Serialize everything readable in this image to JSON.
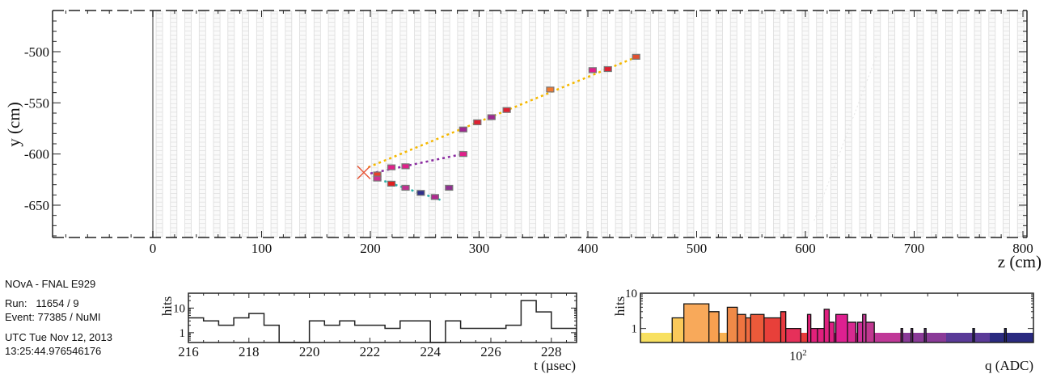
{
  "info": {
    "title": "NOvA - FNAL E929",
    "run_label": "Run:",
    "run_value": "11654 / 9",
    "event_label": "Event:",
    "event_value": "77385 / NuMI",
    "date": "UTC Tue Nov 12, 2013",
    "time": "13:25:44.976546176"
  },
  "chart_data": [
    {
      "name": "event-display-yz",
      "type": "scatter",
      "title": "",
      "xlabel": "z (cm)",
      "ylabel": "y (cm)",
      "xlim": [
        -90,
        805
      ],
      "ylim": [
        -683,
        -462
      ],
      "xticks": [
        0,
        100,
        200,
        300,
        400,
        500,
        600,
        700,
        800
      ],
      "yticks": [
        -500,
        -550,
        -600,
        -650
      ],
      "detector_edge_z": 0,
      "vertex": {
        "z": 194,
        "y": -618,
        "color": "#e8583a"
      },
      "tracks": [
        {
          "name": "track-1",
          "color": "#f5b800",
          "points": [
            [
              198,
              -613
            ],
            [
              445,
              -505
            ]
          ]
        },
        {
          "name": "track-2",
          "color": "#8a2aa0",
          "points": [
            [
              200,
              -619
            ],
            [
              285,
              -600
            ]
          ]
        },
        {
          "name": "track-3",
          "color": "#2ab0a8",
          "points": [
            [
              203,
              -623
            ],
            [
              265,
              -645
            ]
          ]
        }
      ],
      "hits": [
        {
          "z": 206,
          "y": -620,
          "color": "#e8402a"
        },
        {
          "z": 206,
          "y": -624,
          "color": "#d03090"
        },
        {
          "z": 219,
          "y": -613,
          "color": "#e0208a"
        },
        {
          "z": 219,
          "y": -629,
          "color": "#e02020"
        },
        {
          "z": 232,
          "y": -612,
          "color": "#e0208a"
        },
        {
          "z": 232,
          "y": -633,
          "color": "#c03090"
        },
        {
          "z": 246,
          "y": -638,
          "color": "#30308a"
        },
        {
          "z": 259,
          "y": -642,
          "color": "#b02890"
        },
        {
          "z": 272,
          "y": -633,
          "color": "#903090"
        },
        {
          "z": 285,
          "y": -600,
          "color": "#e0208a"
        },
        {
          "z": 285,
          "y": -576,
          "color": "#a02890"
        },
        {
          "z": 298,
          "y": -569,
          "color": "#e02030"
        },
        {
          "z": 311,
          "y": -564,
          "color": "#a02890"
        },
        {
          "z": 325,
          "y": -557,
          "color": "#e02030"
        },
        {
          "z": 365,
          "y": -537,
          "color": "#f07830"
        },
        {
          "z": 404,
          "y": -518,
          "color": "#e0208a"
        },
        {
          "z": 418,
          "y": -517,
          "color": "#e02030"
        },
        {
          "z": 444,
          "y": -505,
          "color": "#e05030"
        }
      ]
    },
    {
      "name": "time-histogram",
      "type": "bar",
      "xlabel": "t (µsec)",
      "ylabel": "hits",
      "xlim": [
        216,
        229
      ],
      "ylog": true,
      "ylim": [
        0.4,
        40
      ],
      "xticks": [
        216,
        218,
        220,
        222,
        224,
        226,
        228
      ],
      "ytick_labels": [
        "10",
        "1"
      ],
      "bin_width": 0.5,
      "bins": [
        [
          216.0,
          4
        ],
        [
          216.5,
          3
        ],
        [
          217.0,
          2
        ],
        [
          217.5,
          4
        ],
        [
          218.0,
          6
        ],
        [
          218.5,
          2
        ],
        [
          219.0,
          0
        ],
        [
          219.5,
          0
        ],
        [
          220.0,
          3
        ],
        [
          220.5,
          2
        ],
        [
          221.0,
          3
        ],
        [
          221.5,
          2
        ],
        [
          222.0,
          2
        ],
        [
          222.5,
          1.5
        ],
        [
          223.0,
          3
        ],
        [
          223.5,
          3
        ],
        [
          224.0,
          0
        ],
        [
          224.5,
          3
        ],
        [
          225.0,
          1.5
        ],
        [
          225.5,
          1.5
        ],
        [
          226.0,
          1.5
        ],
        [
          226.5,
          2
        ],
        [
          227.0,
          20
        ],
        [
          227.5,
          7
        ],
        [
          228.0,
          1.5
        ],
        [
          228.5,
          1.5
        ]
      ]
    },
    {
      "name": "charge-histogram",
      "type": "bar",
      "xlabel": "q (ADC)",
      "ylabel": "hits",
      "xlog": true,
      "xtick_labels": [
        "10²"
      ],
      "ylog": true,
      "ytick_labels": [
        "10",
        "1"
      ],
      "ylim": [
        0.4,
        10
      ],
      "bins_frac": [
        [
          0.095,
          0.13,
          2,
          "#fbc95a"
        ],
        [
          0.13,
          0.205,
          5,
          "#f8a95a"
        ],
        [
          0.205,
          0.235,
          3,
          "#f8a050"
        ],
        [
          0.235,
          0.26,
          0,
          "#f09050"
        ],
        [
          0.26,
          0.29,
          4,
          "#f08a48"
        ],
        [
          0.29,
          0.315,
          2.5,
          "#ee7440"
        ],
        [
          0.315,
          0.33,
          2,
          "#ee6a40"
        ],
        [
          0.33,
          0.37,
          2.5,
          "#ec5a3a"
        ],
        [
          0.37,
          0.42,
          2,
          "#e8403a"
        ],
        [
          0.42,
          0.435,
          3,
          "#e83a40"
        ],
        [
          0.435,
          0.48,
          1,
          "#e6305a"
        ],
        [
          0.48,
          0.5,
          0,
          "#e62070"
        ],
        [
          0.5,
          0.51,
          2.5,
          "#e6207a"
        ],
        [
          0.51,
          0.53,
          1,
          "#e2207a"
        ],
        [
          0.53,
          0.55,
          1,
          "#e0207e"
        ],
        [
          0.55,
          0.565,
          3.5,
          "#e02080"
        ],
        [
          0.565,
          0.58,
          1.5,
          "#de2082"
        ],
        [
          0.585,
          0.62,
          2.5,
          "#de2090"
        ],
        [
          0.62,
          0.645,
          1.5,
          "#d82a90"
        ],
        [
          0.65,
          0.665,
          1.5,
          "#d0309a"
        ],
        [
          0.665,
          0.675,
          2.5,
          "#c83898"
        ],
        [
          0.675,
          0.7,
          1.5,
          "#c03890"
        ],
        [
          0.78,
          0.785,
          1,
          "#8a3a90"
        ],
        [
          0.81,
          0.815,
          1,
          "#7a3a90"
        ],
        [
          0.85,
          0.855,
          1,
          "#6a3a92"
        ],
        [
          0.995,
          1.0,
          1,
          "#30308a"
        ],
        [
          1.09,
          1.095,
          1,
          "#2a2a80"
        ]
      ],
      "gradient_colors": [
        "#f8e060",
        "#f8b050",
        "#f07840",
        "#e83a3a",
        "#e0208a",
        "#c03898",
        "#8a3a98",
        "#5a3a98",
        "#2a2a80"
      ]
    }
  ]
}
